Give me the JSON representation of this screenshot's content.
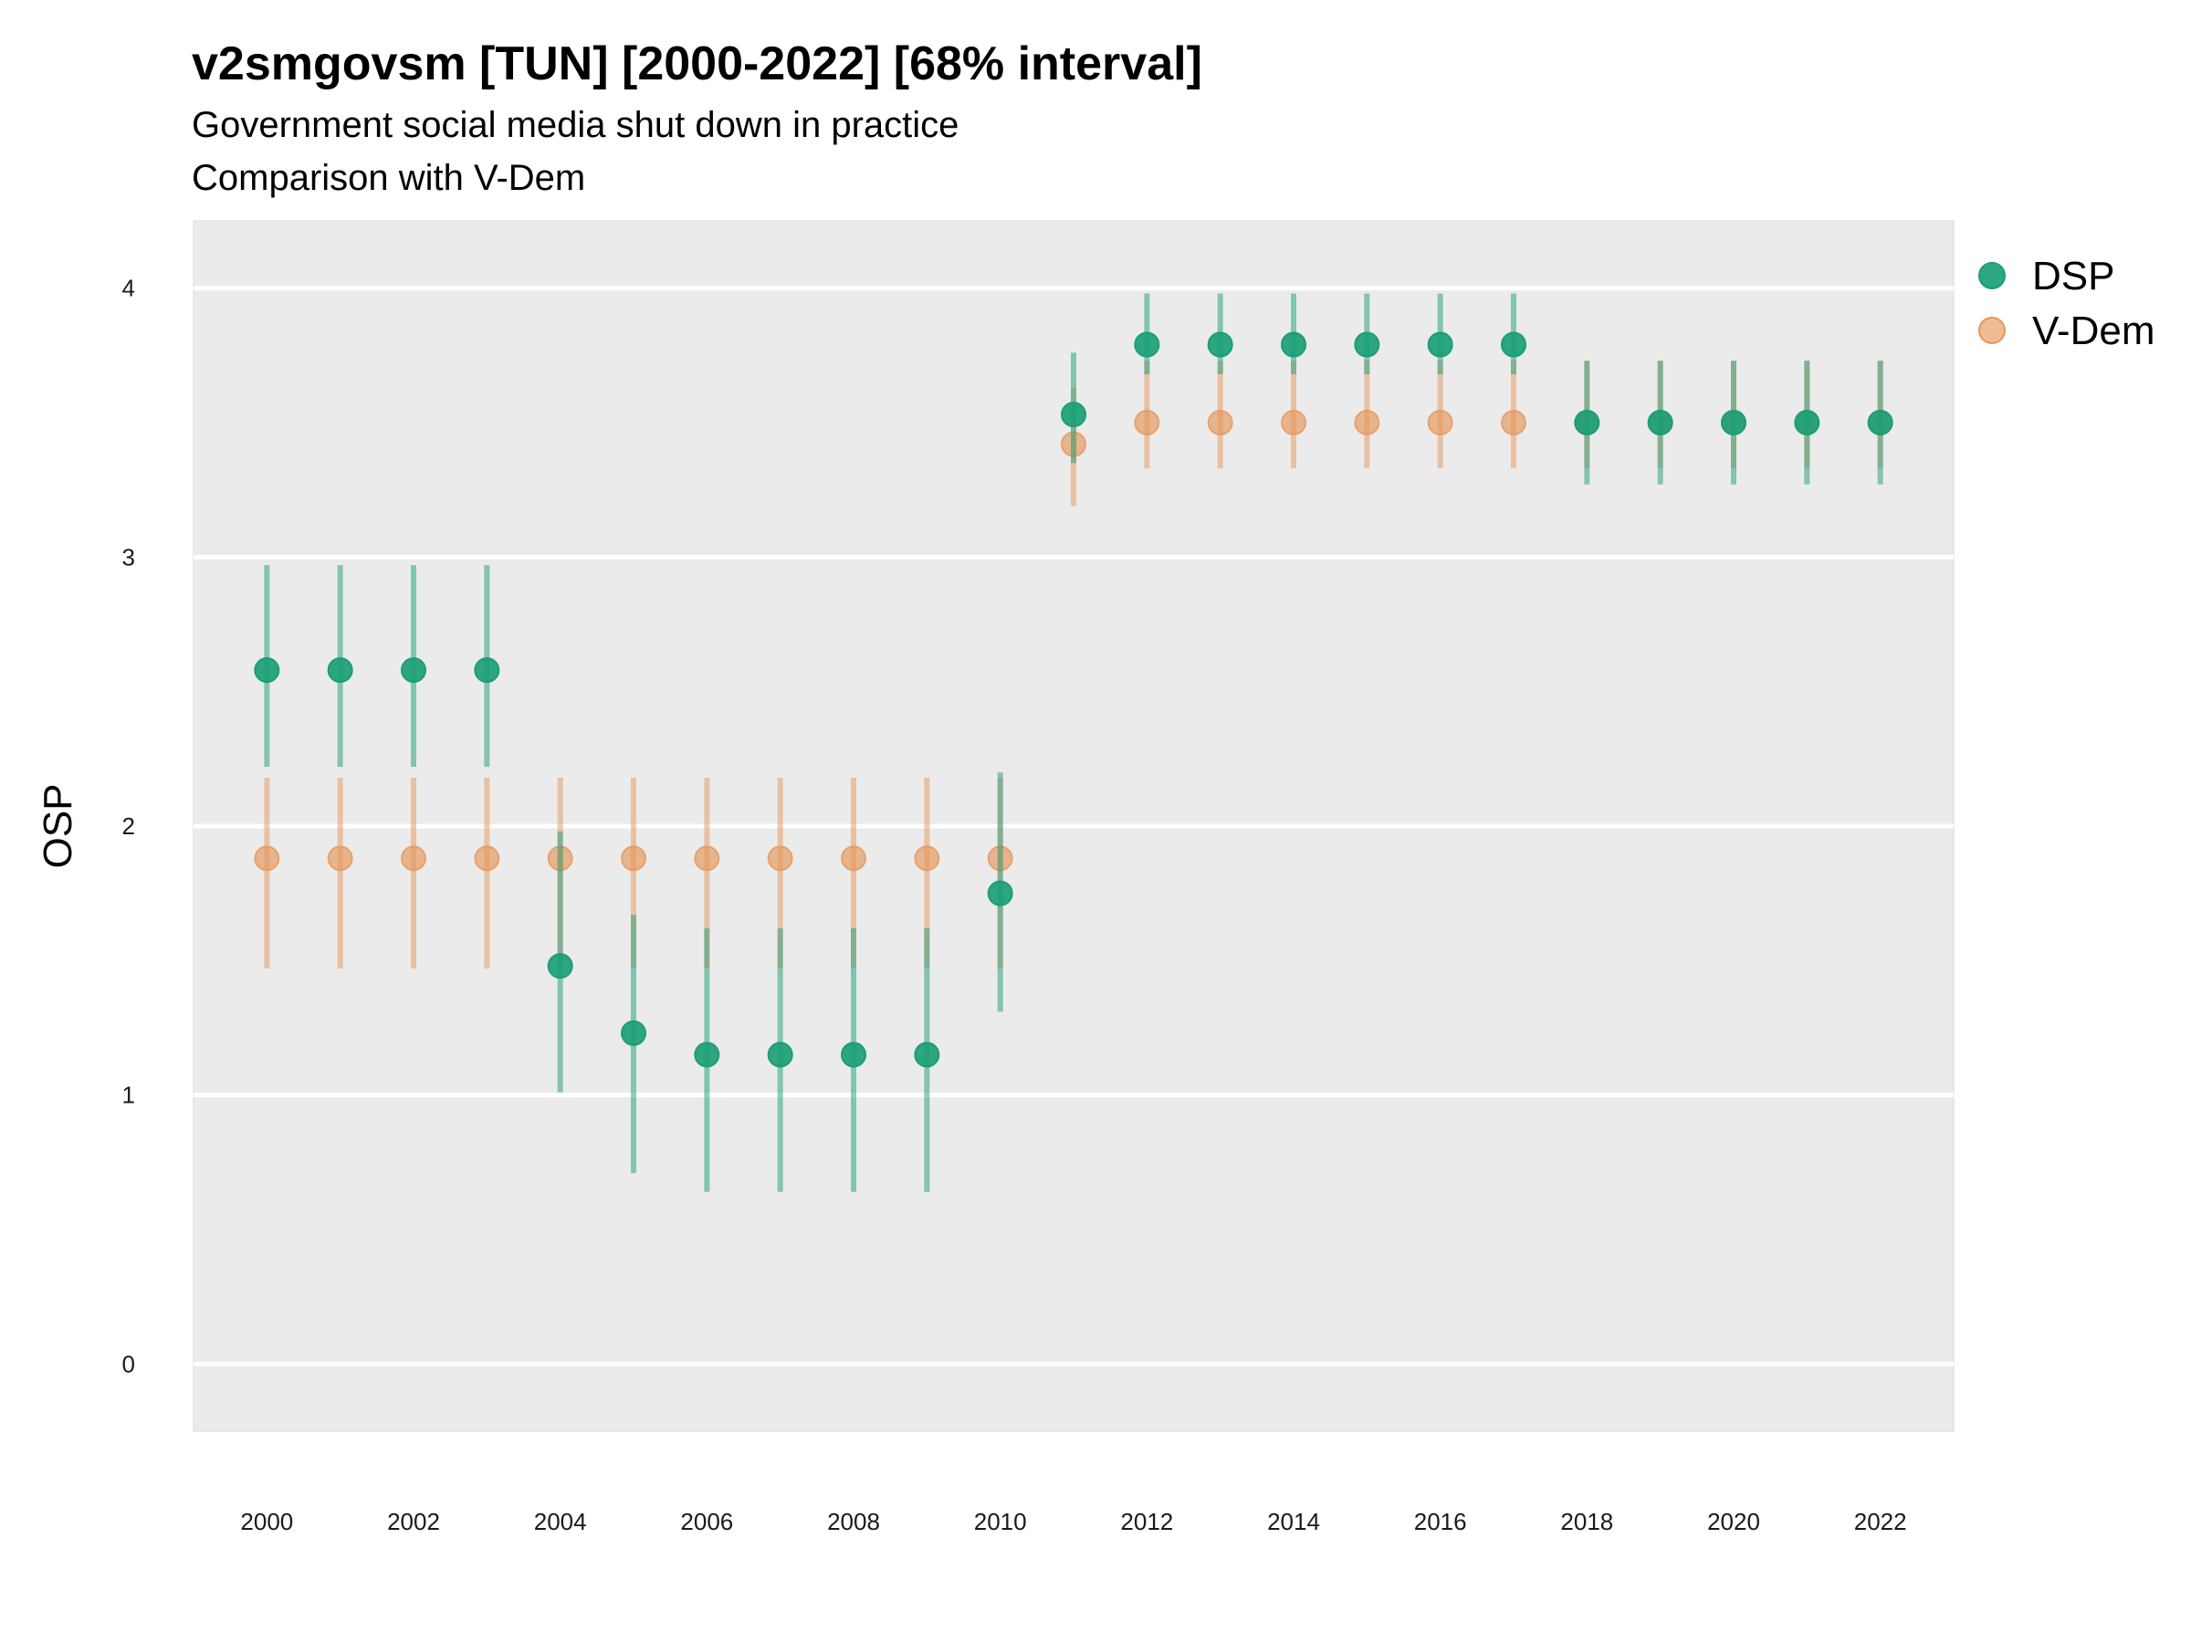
{
  "chart_data": {
    "type": "scatter",
    "title": "v2smgovsm [TUN] [2000-2022] [68% interval]",
    "subtitle": "Government social media shut down in practice",
    "caption": "Comparison with V-Dem",
    "ylabel": "OSP",
    "xlabel": "",
    "xlim": [
      1999.0,
      2023.0
    ],
    "ylim": [
      -0.25,
      4.25
    ],
    "yticks": [
      0,
      1,
      2,
      3,
      4
    ],
    "xticks": [
      2000,
      2002,
      2004,
      2006,
      2008,
      2010,
      2012,
      2014,
      2016,
      2018,
      2020,
      2022
    ],
    "grid": true,
    "legend_position": "right",
    "series": [
      {
        "name": "DSP",
        "color": "#1b9e77",
        "x": [
          2000,
          2001,
          2002,
          2003,
          2004,
          2005,
          2006,
          2007,
          2008,
          2009,
          2010,
          2011,
          2012,
          2013,
          2014,
          2015,
          2016,
          2017,
          2018,
          2019,
          2020,
          2021,
          2022
        ],
        "y": [
          2.58,
          2.58,
          2.58,
          2.58,
          1.48,
          1.23,
          1.15,
          1.15,
          1.15,
          1.15,
          1.75,
          3.53,
          3.79,
          3.79,
          3.79,
          3.79,
          3.79,
          3.79,
          3.5,
          3.5,
          3.5,
          3.5,
          3.5
        ],
        "lower": [
          2.22,
          2.22,
          2.22,
          2.22,
          1.01,
          0.71,
          0.64,
          0.64,
          0.64,
          0.64,
          1.31,
          3.35,
          3.68,
          3.68,
          3.68,
          3.68,
          3.68,
          3.68,
          3.27,
          3.27,
          3.27,
          3.27,
          3.27
        ],
        "upper": [
          2.97,
          2.97,
          2.97,
          2.97,
          1.98,
          1.67,
          1.62,
          1.62,
          1.62,
          1.62,
          2.2,
          3.76,
          3.98,
          3.98,
          3.98,
          3.98,
          3.98,
          3.98,
          3.73,
          3.73,
          3.73,
          3.73,
          3.73
        ]
      },
      {
        "name": "V-Dem",
        "color": "#e6975b",
        "x": [
          2000,
          2001,
          2002,
          2003,
          2004,
          2005,
          2006,
          2007,
          2008,
          2009,
          2010,
          2011,
          2012,
          2013,
          2014,
          2015,
          2016,
          2017,
          2018,
          2019,
          2020,
          2021,
          2022
        ],
        "y": [
          1.88,
          1.88,
          1.88,
          1.88,
          1.88,
          1.88,
          1.88,
          1.88,
          1.88,
          1.88,
          1.88,
          3.42,
          3.5,
          3.5,
          3.5,
          3.5,
          3.5,
          3.5,
          3.5,
          3.5,
          3.5,
          3.5,
          3.5
        ],
        "lower": [
          1.47,
          1.47,
          1.47,
          1.47,
          1.47,
          1.47,
          1.47,
          1.47,
          1.47,
          1.47,
          1.47,
          3.19,
          3.33,
          3.33,
          3.33,
          3.33,
          3.33,
          3.33,
          3.33,
          3.33,
          3.33,
          3.33,
          3.33
        ],
        "upper": [
          2.18,
          2.18,
          2.18,
          2.18,
          2.18,
          2.18,
          2.18,
          2.18,
          2.18,
          2.18,
          2.18,
          3.63,
          3.73,
          3.73,
          3.73,
          3.73,
          3.73,
          3.73,
          3.73,
          3.73,
          3.73,
          3.73,
          3.73
        ]
      }
    ]
  }
}
